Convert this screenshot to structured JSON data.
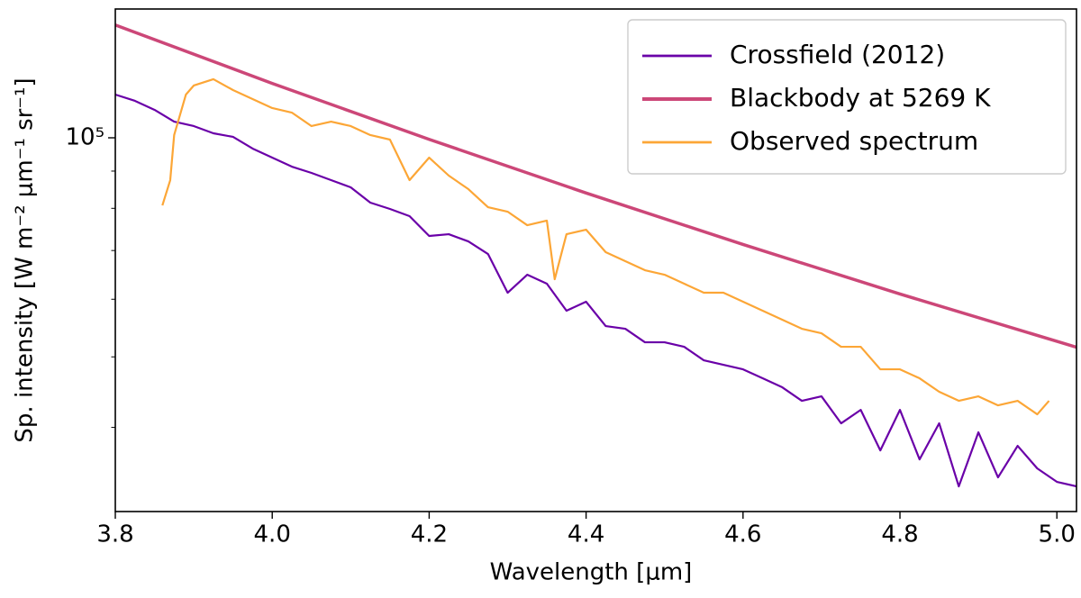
{
  "chart_data": {
    "type": "line",
    "xlabel": "Wavelength [μm]",
    "ylabel": "Sp. intensity [W m⁻² μm⁻¹ sr⁻¹]",
    "xlim": [
      3.8,
      5.025
    ],
    "ylim": [
      30650,
      150300
    ],
    "yscale": "log",
    "xticks": [
      3.8,
      {
        "value": 4,
        "label": "4.0"
      },
      4.2,
      4.4,
      4.6,
      4.8,
      {
        "value": 5,
        "label": "5.0"
      }
    ],
    "yticks": [
      {
        "value": 100000,
        "label": "10⁵"
      }
    ],
    "yminor_ticks": [
      40000,
      50000,
      60000,
      70000,
      80000,
      90000
    ],
    "grid": false,
    "legend": "upper right",
    "series": [
      {
        "name": "Crossfield (2012)",
        "color": "#6a00a8",
        "width": 2.2,
        "x": [
          3.8,
          3.825,
          3.85,
          3.875,
          3.9,
          3.925,
          3.95,
          3.975,
          4.0,
          4.025,
          4.05,
          4.075,
          4.1,
          4.125,
          4.15,
          4.175,
          4.2,
          4.225,
          4.25,
          4.275,
          4.3,
          4.325,
          4.35,
          4.375,
          4.4,
          4.425,
          4.45,
          4.475,
          4.5,
          4.525,
          4.55,
          4.575,
          4.6,
          4.625,
          4.65,
          4.675,
          4.7,
          4.725,
          4.75,
          4.775,
          4.8,
          4.825,
          4.85,
          4.875,
          4.9,
          4.925,
          4.95,
          4.975,
          5.0,
          5.025
        ],
        "values": [
          114660,
          112400,
          109240,
          105260,
          103780,
          101430,
          100290,
          96640,
          93920,
          91280,
          89480,
          87460,
          85490,
          81450,
          79840,
          78040,
          73300,
          73710,
          72050,
          69230,
          61250,
          64840,
          63020,
          57860,
          59530,
          55120,
          54650,
          52360,
          52360,
          51620,
          49460,
          48760,
          48070,
          46720,
          45410,
          43510,
          44130,
          40520,
          42280,
          37190,
          42280,
          36150,
          40520,
          33190,
          39380,
          34150,
          37730,
          35130,
          33670,
          33190
        ]
      },
      {
        "name": "Blackbody at 5269 K",
        "color": "#cc4778",
        "width": 3.5,
        "x": [
          3.8,
          4.0,
          4.2,
          4.4,
          4.6,
          4.8,
          5.025
        ],
        "values": [
          142900,
          118780,
          99500,
          83970,
          71356,
          61000,
          51550
        ]
      },
      {
        "name": "Observed spectrum",
        "color": "#fca636",
        "width": 2.2,
        "x": [
          3.86,
          3.87,
          3.875,
          3.89,
          3.9,
          3.925,
          3.95,
          3.975,
          4.0,
          4.025,
          4.05,
          4.075,
          4.1,
          4.125,
          4.15,
          4.175,
          4.2,
          4.225,
          4.25,
          4.275,
          4.3,
          4.325,
          4.35,
          4.36,
          4.375,
          4.4,
          4.425,
          4.45,
          4.475,
          4.5,
          4.525,
          4.55,
          4.575,
          4.6,
          4.625,
          4.65,
          4.675,
          4.7,
          4.725,
          4.75,
          4.775,
          4.8,
          4.825,
          4.85,
          4.875,
          4.9,
          4.925,
          4.95,
          4.975,
          4.99
        ],
        "values": [
          80750,
          87460,
          100860,
          114660,
          117980,
          120360,
          116300,
          113040,
          109860,
          108300,
          103780,
          105260,
          103780,
          100860,
          99430,
          87460,
          93920,
          88720,
          85000,
          80290,
          79160,
          75840,
          76940,
          63920,
          73710,
          74770,
          69630,
          67670,
          65770,
          64840,
          63020,
          61250,
          61250,
          59530,
          57860,
          56230,
          54650,
          53870,
          51620,
          51620,
          48070,
          48070,
          46720,
          44770,
          43510,
          44130,
          42890,
          43510,
          41690,
          43510
        ]
      }
    ]
  }
}
